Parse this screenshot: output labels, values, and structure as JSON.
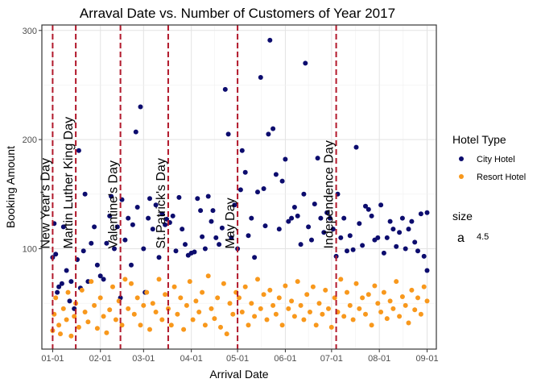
{
  "chart_data": {
    "type": "scatter",
    "title": "Arraval Date vs. Number of Customers of Year 2017",
    "xlabel": "Arrival Date",
    "ylabel": "Booking Amount",
    "x_ticks": [
      "01-01",
      "02-01",
      "03-01",
      "04-01",
      "05-01",
      "06-01",
      "07-01",
      "08-01",
      "09-01"
    ],
    "xlim": [
      "2016-12-25",
      "2017-09-07"
    ],
    "y_ticks": [
      100,
      200,
      300
    ],
    "ylim": [
      8,
      305
    ],
    "grid": true,
    "legend": {
      "position": "right",
      "title": "Hotel Type",
      "entries": [
        "City Hotel",
        "Resort Hotel"
      ],
      "size_title": "size",
      "size_glyph": "a",
      "size_value": "4.5"
    },
    "holidays": [
      {
        "label": "New Year's Day",
        "date": "2017-01-01"
      },
      {
        "label": "Martin Luther King Day",
        "date": "2017-01-16"
      },
      {
        "label": "Valentine's Day",
        "date": "2017-02-14"
      },
      {
        "label": "St.Patrick's Day",
        "date": "2017-03-17"
      },
      {
        "label": "May Day",
        "date": "2017-05-01"
      },
      {
        "label": "Independence Day",
        "date": "2017-07-04"
      }
    ],
    "series": [
      {
        "name": "City Hotel",
        "color": "#0c0c6e",
        "points": [
          [
            "2017-01-01",
            92
          ],
          [
            "2017-01-02",
            123
          ],
          [
            "2017-01-03",
            95
          ],
          [
            "2017-01-04",
            60
          ],
          [
            "2017-01-05",
            65
          ],
          [
            "2017-01-07",
            68
          ],
          [
            "2017-01-08",
            120
          ],
          [
            "2017-01-10",
            80
          ],
          [
            "2017-01-12",
            52
          ],
          [
            "2017-01-13",
            70
          ],
          [
            "2017-01-15",
            45
          ],
          [
            "2017-01-17",
            90
          ],
          [
            "2017-01-18",
            190
          ],
          [
            "2017-01-19",
            64
          ],
          [
            "2017-01-21",
            98
          ],
          [
            "2017-01-22",
            150
          ],
          [
            "2017-01-24",
            70
          ],
          [
            "2017-01-26",
            105
          ],
          [
            "2017-01-28",
            120
          ],
          [
            "2017-01-30",
            85
          ],
          [
            "2017-02-01",
            75
          ],
          [
            "2017-02-03",
            72
          ],
          [
            "2017-02-05",
            105
          ],
          [
            "2017-02-07",
            130
          ],
          [
            "2017-02-08",
            148
          ],
          [
            "2017-02-10",
            100
          ],
          [
            "2017-02-12",
            120
          ],
          [
            "2017-02-14",
            55
          ],
          [
            "2017-02-15",
            145
          ],
          [
            "2017-02-17",
            108
          ],
          [
            "2017-02-19",
            128
          ],
          [
            "2017-02-21",
            85
          ],
          [
            "2017-02-22",
            122
          ],
          [
            "2017-02-24",
            207
          ],
          [
            "2017-02-25",
            138
          ],
          [
            "2017-02-27",
            230
          ],
          [
            "2017-03-01",
            100
          ],
          [
            "2017-03-02",
            60
          ],
          [
            "2017-03-04",
            128
          ],
          [
            "2017-03-05",
            146
          ],
          [
            "2017-03-07",
            118
          ],
          [
            "2017-03-09",
            140
          ],
          [
            "2017-03-11",
            92
          ],
          [
            "2017-03-13",
            132
          ],
          [
            "2017-03-15",
            122
          ],
          [
            "2017-03-16",
            127
          ],
          [
            "2017-03-18",
            124
          ],
          [
            "2017-03-20",
            130
          ],
          [
            "2017-03-22",
            98
          ],
          [
            "2017-03-24",
            147
          ],
          [
            "2017-03-26",
            118
          ],
          [
            "2017-03-28",
            104
          ],
          [
            "2017-03-30",
            94
          ],
          [
            "2017-04-01",
            96
          ],
          [
            "2017-04-03",
            97
          ],
          [
            "2017-04-05",
            146
          ],
          [
            "2017-04-07",
            135
          ],
          [
            "2017-04-08",
            111
          ],
          [
            "2017-04-10",
            100
          ],
          [
            "2017-04-12",
            148
          ],
          [
            "2017-04-14",
            125
          ],
          [
            "2017-04-15",
            135
          ],
          [
            "2017-04-17",
            110
          ],
          [
            "2017-04-19",
            104
          ],
          [
            "2017-04-21",
            119
          ],
          [
            "2017-04-23",
            246
          ],
          [
            "2017-04-25",
            205
          ],
          [
            "2017-04-27",
            110
          ],
          [
            "2017-04-29",
            140
          ],
          [
            "2017-05-01",
            100
          ],
          [
            "2017-05-03",
            154
          ],
          [
            "2017-05-04",
            190
          ],
          [
            "2017-05-06",
            170
          ],
          [
            "2017-05-08",
            112
          ],
          [
            "2017-05-10",
            128
          ],
          [
            "2017-05-12",
            92
          ],
          [
            "2017-05-14",
            152
          ],
          [
            "2017-05-16",
            257
          ],
          [
            "2017-05-18",
            155
          ],
          [
            "2017-05-19",
            121
          ],
          [
            "2017-05-21",
            205
          ],
          [
            "2017-05-22",
            291
          ],
          [
            "2017-05-24",
            210
          ],
          [
            "2017-05-26",
            168
          ],
          [
            "2017-05-28",
            118
          ],
          [
            "2017-05-30",
            162
          ],
          [
            "2017-06-01",
            182
          ],
          [
            "2017-06-03",
            125
          ],
          [
            "2017-06-05",
            128
          ],
          [
            "2017-06-07",
            138
          ],
          [
            "2017-06-09",
            130
          ],
          [
            "2017-06-11",
            104
          ],
          [
            "2017-06-13",
            150
          ],
          [
            "2017-06-14",
            270
          ],
          [
            "2017-06-16",
            120
          ],
          [
            "2017-06-18",
            108
          ],
          [
            "2017-06-20",
            141
          ],
          [
            "2017-06-22",
            183
          ],
          [
            "2017-06-24",
            128
          ],
          [
            "2017-06-26",
            115
          ],
          [
            "2017-06-28",
            133
          ],
          [
            "2017-06-30",
            128
          ],
          [
            "2017-07-02",
            118
          ],
          [
            "2017-07-04",
            93
          ],
          [
            "2017-07-05",
            150
          ],
          [
            "2017-07-07",
            110
          ],
          [
            "2017-07-09",
            128
          ],
          [
            "2017-07-11",
            98
          ],
          [
            "2017-07-13",
            112
          ],
          [
            "2017-07-15",
            99
          ],
          [
            "2017-07-17",
            193
          ],
          [
            "2017-07-19",
            123
          ],
          [
            "2017-07-21",
            103
          ],
          [
            "2017-07-23",
            139
          ],
          [
            "2017-07-25",
            136
          ],
          [
            "2017-07-27",
            130
          ],
          [
            "2017-07-29",
            108
          ],
          [
            "2017-07-31",
            110
          ],
          [
            "2017-08-02",
            140
          ],
          [
            "2017-08-04",
            96
          ],
          [
            "2017-08-06",
            110
          ],
          [
            "2017-08-08",
            125
          ],
          [
            "2017-08-10",
            118
          ],
          [
            "2017-08-12",
            102
          ],
          [
            "2017-08-14",
            115
          ],
          [
            "2017-08-16",
            128
          ],
          [
            "2017-08-18",
            100
          ],
          [
            "2017-08-20",
            118
          ],
          [
            "2017-08-22",
            125
          ],
          [
            "2017-08-24",
            106
          ],
          [
            "2017-08-26",
            98
          ],
          [
            "2017-08-28",
            132
          ],
          [
            "2017-08-30",
            93
          ],
          [
            "2017-09-01",
            80
          ],
          [
            "2017-09-01",
            133
          ]
        ]
      },
      {
        "name": "Resort Hotel",
        "color": "#f8981c",
        "points": [
          [
            "2017-01-01",
            25
          ],
          [
            "2017-01-02",
            40
          ],
          [
            "2017-01-03",
            55
          ],
          [
            "2017-01-05",
            30
          ],
          [
            "2017-01-06",
            22
          ],
          [
            "2017-01-08",
            45
          ],
          [
            "2017-01-10",
            35
          ],
          [
            "2017-01-11",
            60
          ],
          [
            "2017-01-13",
            20
          ],
          [
            "2017-01-15",
            38
          ],
          [
            "2017-01-16",
            50
          ],
          [
            "2017-01-18",
            28
          ],
          [
            "2017-01-20",
            62
          ],
          [
            "2017-01-22",
            42
          ],
          [
            "2017-01-24",
            33
          ],
          [
            "2017-01-26",
            70
          ],
          [
            "2017-01-28",
            48
          ],
          [
            "2017-01-30",
            27
          ],
          [
            "2017-02-01",
            55
          ],
          [
            "2017-02-03",
            38
          ],
          [
            "2017-02-05",
            23
          ],
          [
            "2017-02-07",
            44
          ],
          [
            "2017-02-09",
            65
          ],
          [
            "2017-02-11",
            35
          ],
          [
            "2017-02-13",
            52
          ],
          [
            "2017-02-15",
            30
          ],
          [
            "2017-02-17",
            72
          ],
          [
            "2017-02-19",
            45
          ],
          [
            "2017-02-21",
            68
          ],
          [
            "2017-02-23",
            40
          ],
          [
            "2017-02-25",
            55
          ],
          [
            "2017-02-27",
            30
          ],
          [
            "2017-03-01",
            48
          ],
          [
            "2017-03-03",
            60
          ],
          [
            "2017-03-05",
            26
          ],
          [
            "2017-03-07",
            50
          ],
          [
            "2017-03-09",
            42
          ],
          [
            "2017-03-11",
            72
          ],
          [
            "2017-03-13",
            35
          ],
          [
            "2017-03-15",
            58
          ],
          [
            "2017-03-17",
            45
          ],
          [
            "2017-03-19",
            30
          ],
          [
            "2017-03-21",
            65
          ],
          [
            "2017-03-23",
            40
          ],
          [
            "2017-03-25",
            55
          ],
          [
            "2017-03-27",
            26
          ],
          [
            "2017-03-29",
            48
          ],
          [
            "2017-03-31",
            70
          ],
          [
            "2017-04-02",
            35
          ],
          [
            "2017-04-04",
            52
          ],
          [
            "2017-04-06",
            42
          ],
          [
            "2017-04-08",
            60
          ],
          [
            "2017-04-10",
            30
          ],
          [
            "2017-04-12",
            75
          ],
          [
            "2017-04-14",
            45
          ],
          [
            "2017-04-16",
            36
          ],
          [
            "2017-04-18",
            55
          ],
          [
            "2017-04-20",
            28
          ],
          [
            "2017-04-22",
            68
          ],
          [
            "2017-04-24",
            22
          ],
          [
            "2017-04-26",
            50
          ],
          [
            "2017-04-28",
            40
          ],
          [
            "2017-04-30",
            60
          ],
          [
            "2017-05-02",
            55
          ],
          [
            "2017-05-04",
            42
          ],
          [
            "2017-05-06",
            65
          ],
          [
            "2017-05-08",
            30
          ],
          [
            "2017-05-10",
            50
          ],
          [
            "2017-05-12",
            38
          ],
          [
            "2017-05-14",
            72
          ],
          [
            "2017-05-16",
            45
          ],
          [
            "2017-05-18",
            58
          ],
          [
            "2017-05-20",
            35
          ],
          [
            "2017-05-22",
            62
          ],
          [
            "2017-05-24",
            48
          ],
          [
            "2017-05-26",
            40
          ],
          [
            "2017-05-28",
            55
          ],
          [
            "2017-05-30",
            30
          ],
          [
            "2017-06-01",
            66
          ],
          [
            "2017-06-03",
            45
          ],
          [
            "2017-06-05",
            52
          ],
          [
            "2017-06-07",
            38
          ],
          [
            "2017-06-09",
            70
          ],
          [
            "2017-06-11",
            48
          ],
          [
            "2017-06-13",
            35
          ],
          [
            "2017-06-15",
            58
          ],
          [
            "2017-06-17",
            42
          ],
          [
            "2017-06-19",
            65
          ],
          [
            "2017-06-21",
            30
          ],
          [
            "2017-06-23",
            50
          ],
          [
            "2017-06-25",
            40
          ],
          [
            "2017-06-27",
            62
          ],
          [
            "2017-06-29",
            45
          ],
          [
            "2017-07-01",
            28
          ],
          [
            "2017-07-03",
            55
          ],
          [
            "2017-07-05",
            42
          ],
          [
            "2017-07-07",
            72
          ],
          [
            "2017-07-09",
            38
          ],
          [
            "2017-07-11",
            60
          ],
          [
            "2017-07-13",
            48
          ],
          [
            "2017-07-15",
            35
          ],
          [
            "2017-07-17",
            68
          ],
          [
            "2017-07-19",
            45
          ],
          [
            "2017-07-21",
            55
          ],
          [
            "2017-07-23",
            40
          ],
          [
            "2017-07-25",
            58
          ],
          [
            "2017-07-27",
            30
          ],
          [
            "2017-07-29",
            66
          ],
          [
            "2017-07-31",
            50
          ],
          [
            "2017-08-02",
            42
          ],
          [
            "2017-08-04",
            60
          ],
          [
            "2017-08-06",
            36
          ],
          [
            "2017-08-08",
            52
          ],
          [
            "2017-08-10",
            45
          ],
          [
            "2017-08-12",
            70
          ],
          [
            "2017-08-14",
            38
          ],
          [
            "2017-08-16",
            56
          ],
          [
            "2017-08-18",
            48
          ],
          [
            "2017-08-20",
            32
          ],
          [
            "2017-08-22",
            62
          ],
          [
            "2017-08-24",
            44
          ],
          [
            "2017-08-26",
            55
          ],
          [
            "2017-08-28",
            40
          ],
          [
            "2017-08-30",
            65
          ],
          [
            "2017-09-01",
            52
          ]
        ]
      }
    ]
  }
}
